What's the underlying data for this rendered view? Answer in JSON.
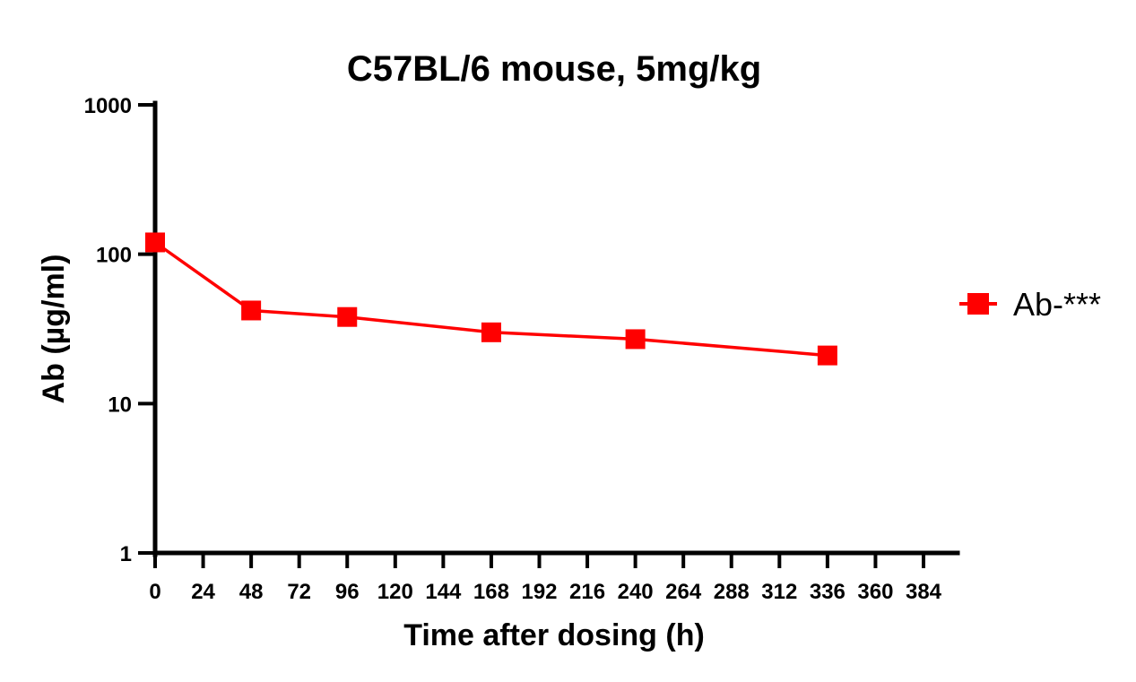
{
  "chart_data": {
    "type": "line",
    "title": "C57BL/6 mouse, 5mg/kg",
    "xlabel": "Time after dosing (h)",
    "ylabel": "Ab (µg/ml)",
    "xscale": "linear",
    "yscale": "log",
    "xlim": [
      0,
      384
    ],
    "ylim": [
      1,
      1000
    ],
    "xticks": [
      0,
      24,
      48,
      72,
      96,
      120,
      144,
      168,
      192,
      216,
      240,
      264,
      288,
      312,
      336,
      360,
      384
    ],
    "xtick_labels": [
      "0",
      "24",
      "48",
      "72",
      "96",
      "120",
      "144",
      "168",
      "192",
      "216",
      "240",
      "264",
      "288",
      "312",
      "336",
      "360",
      "384"
    ],
    "yticks": [
      1,
      10,
      100,
      1000
    ],
    "ytick_labels": [
      "1",
      "10",
      "100",
      "1000"
    ],
    "grid": false,
    "legend_position": "right",
    "series": [
      {
        "name": "Ab-***",
        "color": "#ff0000",
        "marker": "square",
        "x": [
          0,
          48,
          96,
          168,
          240,
          336
        ],
        "y": [
          120,
          42,
          38,
          30,
          27,
          21
        ]
      }
    ]
  }
}
